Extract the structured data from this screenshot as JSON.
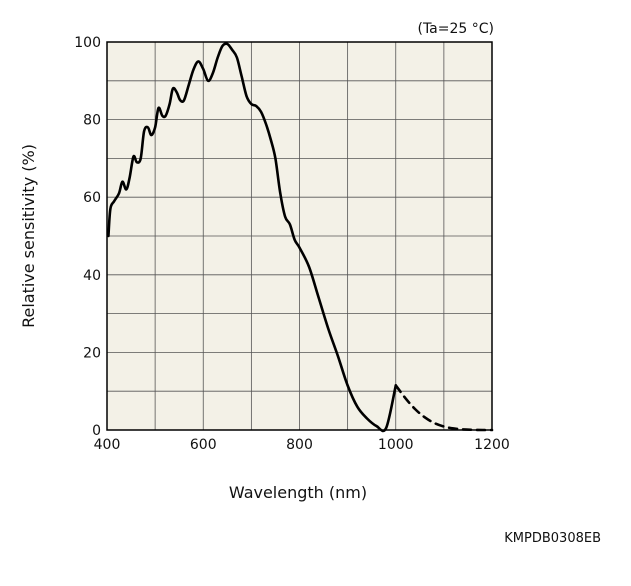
{
  "chart_data": {
    "type": "line",
    "title": "",
    "condition": "(Ta=25 °C)",
    "xlabel": "Wavelength (nm)",
    "ylabel": "Relative sensitivity (%)",
    "xlim": [
      400,
      1200
    ],
    "ylim": [
      0,
      100
    ],
    "x_ticks": [
      400,
      600,
      800,
      1000,
      1200
    ],
    "y_ticks": [
      0,
      20,
      40,
      60,
      80,
      100
    ],
    "x_tick_labels": [
      "400",
      "600",
      "800",
      "1000",
      "1200"
    ],
    "y_tick_labels": [
      "0",
      "20",
      "40",
      "60",
      "80",
      "100"
    ],
    "grid": true,
    "plot_background": "#f3f1e7",
    "line_color": "#000000",
    "series": [
      {
        "style": "solid",
        "x": [
          403,
          407,
          415,
          425,
          432,
          440,
          447,
          455,
          462,
          470,
          477,
          485,
          492,
          500,
          507,
          515,
          522,
          530,
          537,
          545,
          552,
          560,
          570,
          580,
          590,
          600,
          610,
          620,
          630,
          640,
          650,
          660,
          670,
          680,
          690,
          700,
          710,
          720,
          730,
          740,
          750,
          760,
          770,
          780,
          790,
          800,
          820,
          840,
          860,
          880,
          900,
          920,
          940,
          960,
          980,
          1000
        ],
        "y": [
          50,
          57,
          59,
          61,
          64,
          62,
          65,
          70.5,
          69,
          70,
          77,
          78,
          76,
          78,
          83,
          81,
          81,
          84,
          88,
          87,
          85,
          85,
          89,
          93,
          95,
          93,
          90,
          92,
          96,
          99,
          99.5,
          98,
          96,
          91,
          86,
          84,
          83.5,
          82,
          79,
          75,
          70,
          61,
          55,
          53,
          49,
          47,
          42,
          34,
          26,
          19,
          11.5,
          6,
          3,
          1,
          0.5,
          11.5
        ]
      },
      {
        "style": "dashed",
        "x": [
          1000,
          1020,
          1040,
          1060,
          1080,
          1100,
          1120,
          1140,
          1160,
          1180,
          1200
        ],
        "y": [
          11.5,
          8.2,
          5.4,
          3.3,
          1.8,
          0.9,
          0.4,
          0.15,
          0.05,
          0.0,
          0.0
        ]
      }
    ]
  },
  "figure_code": "KMPDB0308EB"
}
